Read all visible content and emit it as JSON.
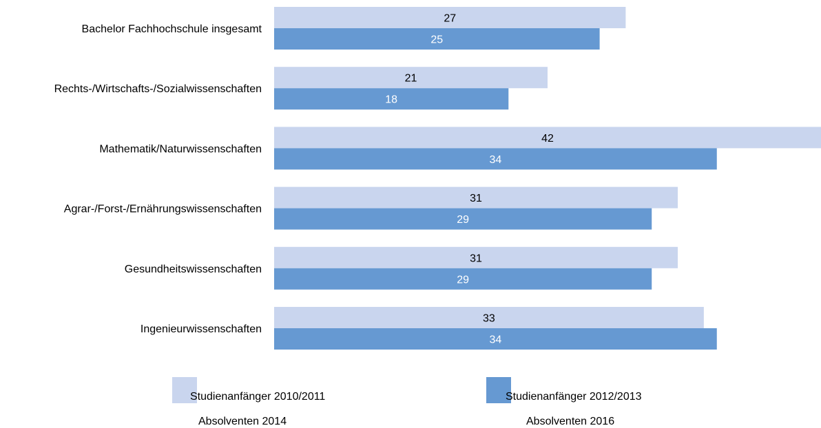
{
  "chart_data": {
    "type": "bar",
    "orientation": "horizontal",
    "categories": [
      "Bachelor Fachhochschule insgesamt",
      "Rechts-/Wirtschafts-/Sozialwissenschaften",
      "Mathematik/Naturwissenschaften",
      "Agrar-/Forst-/Ernährungswissenschaften",
      "Gesundheitswissenschaften",
      "Ingenieurwissenschaften"
    ],
    "series": [
      {
        "name": "Studienanfänger 2010/2011",
        "subname": "Absolventen 2014",
        "color": "#c9d5ee",
        "label_color": "#000000",
        "values": [
          27,
          21,
          42,
          31,
          31,
          33
        ]
      },
      {
        "name": "Studienanfänger 2012/2013",
        "subname": "Absolventen 2016",
        "color": "#6699d2",
        "label_color": "#ffffff",
        "values": [
          25,
          18,
          34,
          29,
          29,
          34
        ]
      }
    ],
    "xlim": [
      0,
      42
    ],
    "data_labels": true,
    "grid": false,
    "axis_ticks": false,
    "legend_position": "bottom"
  }
}
